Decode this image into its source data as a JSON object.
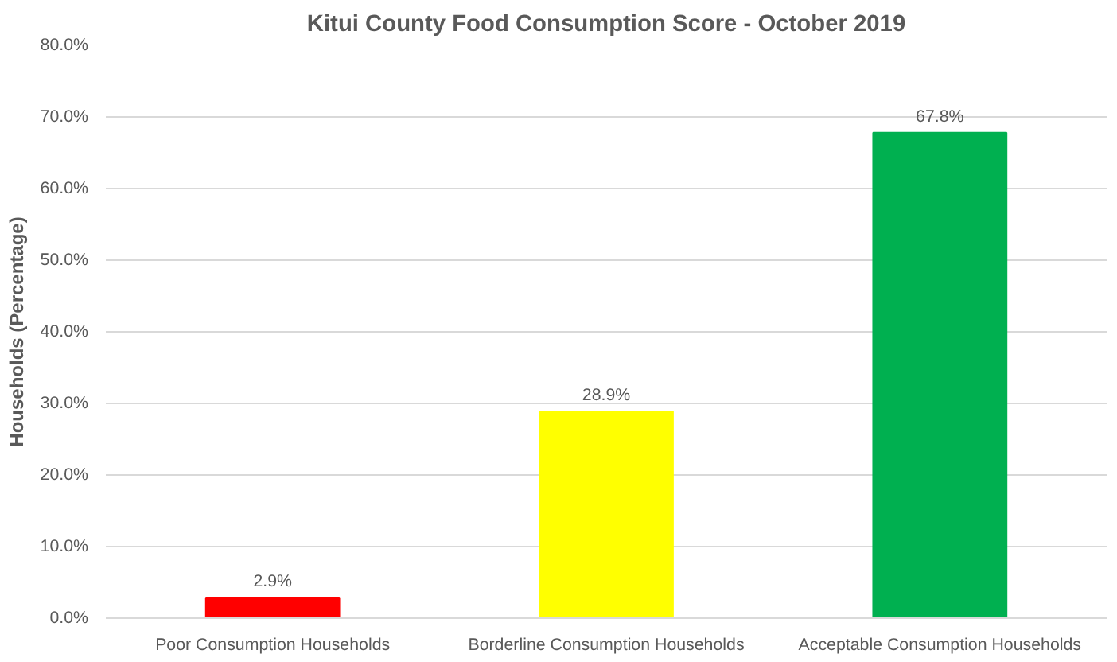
{
  "chart_data": {
    "type": "bar",
    "title": "Kitui County Food Consumption Score - October 2019",
    "ylabel": "Households (Percentage)",
    "categories": [
      "Poor Consumption Households",
      "Borderline Consumption Households",
      "Acceptable Consumption Households"
    ],
    "values": [
      2.9,
      28.9,
      67.8
    ],
    "colors": [
      "#ff0000",
      "#ffff00",
      "#00b050"
    ],
    "value_labels": [
      "2.9%",
      "28.9%",
      "67.8%"
    ],
    "ylim": [
      0,
      80
    ],
    "yticks": [
      {
        "value": 0,
        "label": "0.0%"
      },
      {
        "value": 10,
        "label": "10.0%"
      },
      {
        "value": 20,
        "label": "20.0%"
      },
      {
        "value": 30,
        "label": "30.0%"
      },
      {
        "value": 40,
        "label": "40.0%"
      },
      {
        "value": 50,
        "label": "50.0%"
      },
      {
        "value": 60,
        "label": "60.0%"
      },
      {
        "value": 70,
        "label": "70.0%"
      },
      {
        "value": 80,
        "label": "80.0%"
      }
    ],
    "grid": "y"
  }
}
